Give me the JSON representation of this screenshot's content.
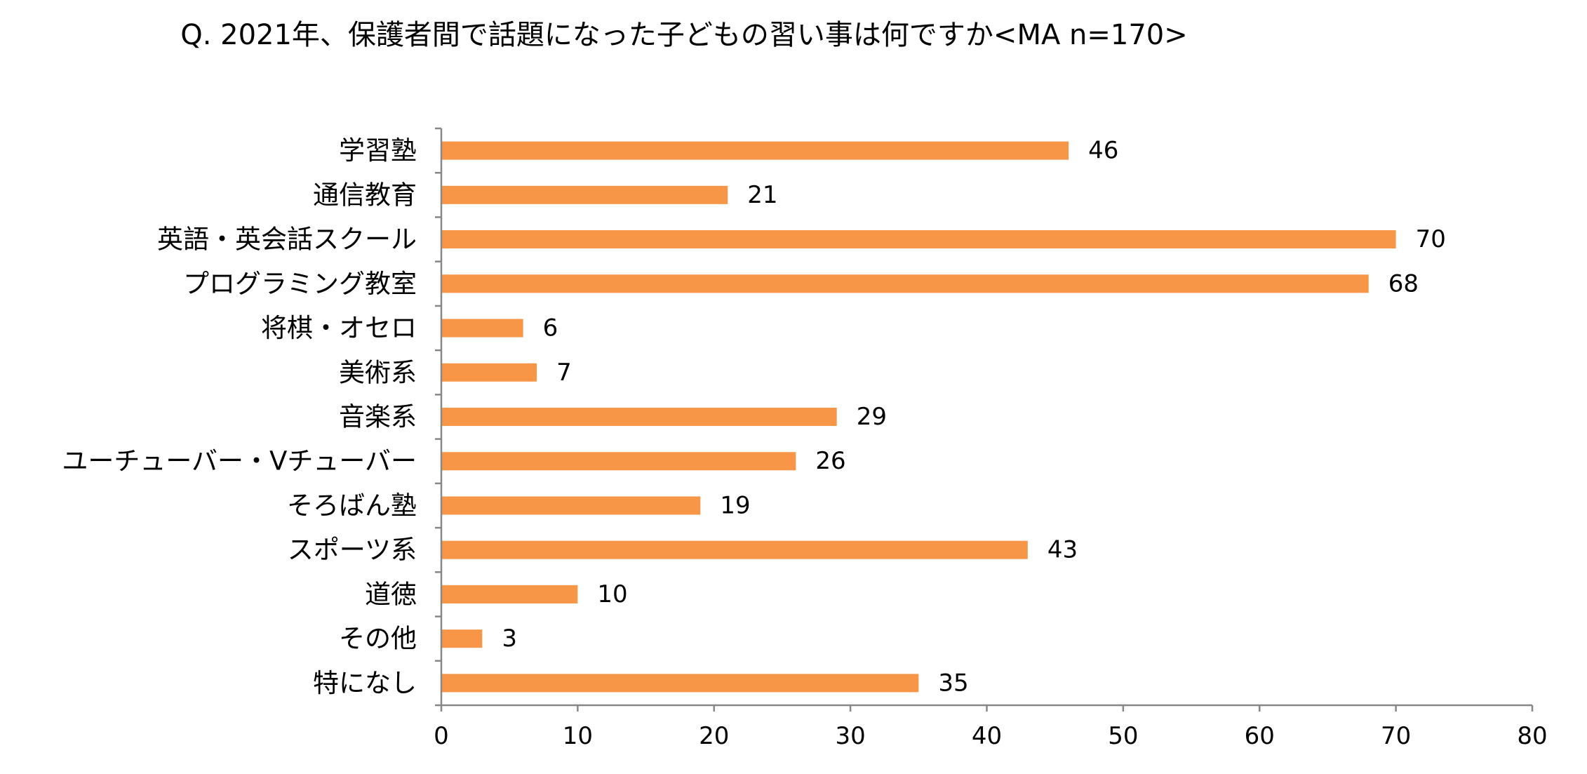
{
  "chart_data": {
    "type": "bar",
    "orientation": "horizontal",
    "title": "Q. 2021年、保護者間で話題になった子どもの習い事は何ですか<MA n=170>",
    "xlabel": "",
    "ylabel": "",
    "categories": [
      "学習塾",
      "通信教育",
      "英語・英会話スクール",
      "プログラミング教室",
      "将棋・オセロ",
      "美術系",
      "音楽系",
      "ユーチューバー・Vチューバー",
      "そろばん塾",
      "スポーツ系",
      "道徳",
      "その他",
      "特になし"
    ],
    "values": [
      46,
      21,
      70,
      68,
      6,
      7,
      29,
      26,
      19,
      43,
      10,
      3,
      35
    ],
    "xlim": [
      0,
      80
    ],
    "xticks": [
      0,
      10,
      20,
      30,
      40,
      50,
      60,
      70,
      80
    ],
    "bar_color": "#F79646",
    "grid": false,
    "legend": false
  }
}
